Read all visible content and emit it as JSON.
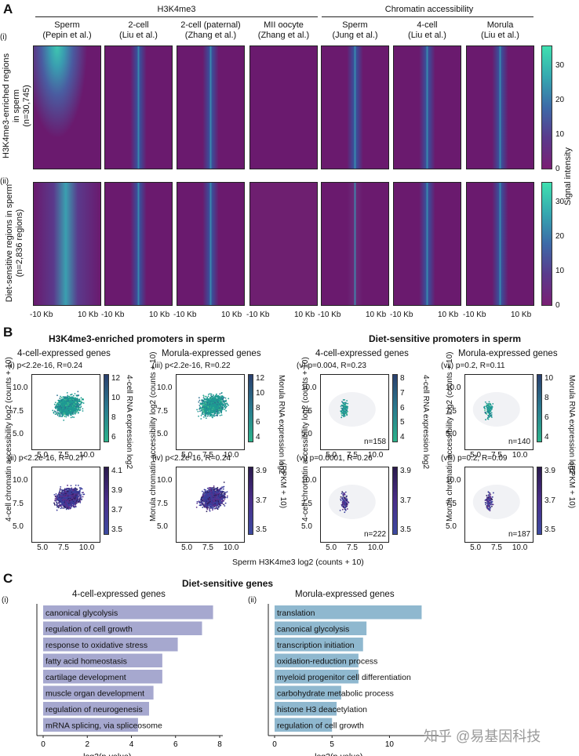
{
  "panelA": {
    "letter": "A",
    "group_h3k4me3": "H3K4me3",
    "group_chromatin": "Chromatin accessibility",
    "row_i": "(i)",
    "row_ii": "(ii)",
    "row_i_label_1": "H3K4me3-enriched regions",
    "row_i_label_2": "in sperm",
    "row_i_label_3": "(n=30,745)",
    "row_ii_label_1": "Diet-sensitive regions in sperm",
    "row_ii_label_2": "(n=2,836 regions)",
    "columns": [
      {
        "l1": "Sperm",
        "l2": "(Pepin et al.)"
      },
      {
        "l1": "2-cell",
        "l2": "(Liu et al.)"
      },
      {
        "l1": "2-cell (paternal)",
        "l2": "(Zhang et al.)"
      },
      {
        "l1": "MII oocyte",
        "l2": "(Zhang et al.)"
      },
      {
        "l1": "Sperm",
        "l2": "(Jung et al.)"
      },
      {
        "l1": "4-cell",
        "l2": "(Liu et al.)"
      },
      {
        "l1": "Morula",
        "l2": "(Liu et al.)"
      }
    ],
    "axis_left": "-10 Kb",
    "axis_right": "10 Kb",
    "colorbar_label": "Signal intensity",
    "colorbar_ticks": [
      "30",
      "20",
      "10",
      "0"
    ],
    "colors": {
      "low": "#6a1a6e",
      "mid": "#3a4f9a",
      "high": "#3fc7b0"
    }
  },
  "panelB": {
    "letter": "B",
    "title_left": "H3K4me3-enriched promoters in sperm",
    "title_right": "Diet-sensitive promoters in sperm",
    "sub_4cell": "4-cell-expressed genes",
    "sub_morula": "Morula-expressed genes",
    "ylabel_4cell": "4-cell chromatin accessibility log2 (counts + 10)",
    "ylabel_morula": "Morula chromatin accessibility log2 (counts + 10)",
    "xlabel": "Sperm H3K4me3 log2 (counts + 10)",
    "cbar_4cell_rna": "4-cell RNA expression log2",
    "cbar_morula_rna": "Morula RNA expression log2",
    "cbar_rpkm": "(RPKM + 10)",
    "plots": [
      {
        "id": "(i)",
        "stat": "p<2.2e-16, R=0.24",
        "n": ""
      },
      {
        "id": "(ii)",
        "stat": "p<2.2e-16, R=0.27",
        "n": ""
      },
      {
        "id": "(iii)",
        "stat": "p<2.2e-16, R=0.22",
        "n": ""
      },
      {
        "id": "(iv)",
        "stat": "p<2.2e-16, R=0.24",
        "n": ""
      },
      {
        "id": "(v)",
        "stat": "p=0.004, R=0.23",
        "n": "n=158"
      },
      {
        "id": "(vi)",
        "stat": "p=0.0001, R=0.26",
        "n": "n=222"
      },
      {
        "id": "(vii)",
        "stat": "p=0.2, R=0.11",
        "n": "n=140"
      },
      {
        "id": "(viii)",
        "stat": "p=0.2, R=0.09",
        "n": "n=187"
      }
    ],
    "yticks": [
      "10.0",
      "7.5",
      "5.0"
    ],
    "xticks": [
      "5.0",
      "7.5",
      "10.0"
    ],
    "cbar_ticks": {
      "i": [
        "12",
        "10",
        "8",
        "6"
      ],
      "ii": [
        "4.1",
        "3.9",
        "3.7",
        "3.5"
      ],
      "iii": [
        "12",
        "10",
        "8",
        "6",
        "4"
      ],
      "iv": [
        "3.9",
        "3.7",
        "3.5"
      ],
      "v": [
        "8",
        "7",
        "6",
        "5",
        "4"
      ],
      "vi": [
        "3.9",
        "3.7",
        "3.5"
      ],
      "vii": [
        "10",
        "8",
        "6",
        "4"
      ],
      "viii": [
        "3.9",
        "3.7",
        "3.5"
      ]
    }
  },
  "panelC": {
    "letter": "C",
    "title": "Diet-sensitive genes",
    "xlabel": "-log2(p-value)",
    "watermark": "知乎 @易基因科技"
  },
  "chart_data": [
    {
      "type": "bar",
      "title": "4-cell-expressed genes",
      "panel": "(i)",
      "orientation": "horizontal",
      "categories": [
        "canonical glycolysis",
        "regulation of cell growth",
        "response to oxidative stress",
        "fatty acid homeostasis",
        "cartilage development",
        "muscle organ development",
        "regulation of neurogenesis",
        "mRNA splicing, via spliceosome"
      ],
      "values": [
        7.7,
        7.2,
        6.1,
        5.4,
        5.4,
        5.0,
        4.8,
        4.3
      ],
      "xlabel": "-log2(p-value)",
      "xlim": [
        0,
        8
      ],
      "xticks": [
        0,
        2,
        4,
        6,
        8
      ],
      "color": "#a6a8cf"
    },
    {
      "type": "bar",
      "title": "Morula-expressed genes",
      "panel": "(ii)",
      "orientation": "horizontal",
      "categories": [
        "translation",
        "canonical glycolysis",
        "transcription initiation",
        "oxidation-reduction process",
        "myeloid progenitor cell differentiation",
        "carbohydrate metabolic process",
        "histone H3 deacetylation",
        "regulation of cell growth"
      ],
      "values": [
        12.8,
        8.0,
        7.7,
        7.3,
        7.3,
        5.8,
        5.4,
        5.0
      ],
      "xlabel": "-log2(p-value)",
      "xlim": [
        0,
        14
      ],
      "xticks": [
        0,
        5,
        10
      ],
      "color": "#8fb8cf"
    }
  ]
}
